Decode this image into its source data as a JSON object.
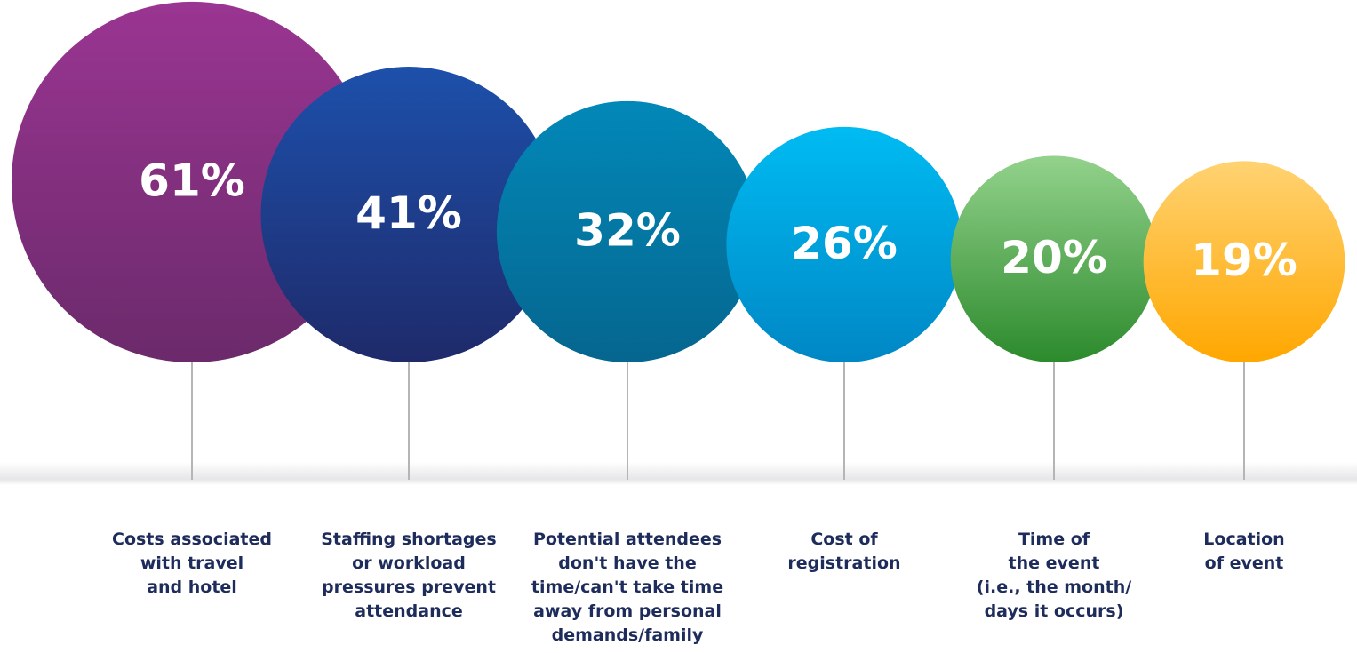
{
  "chart_data": {
    "type": "bubble",
    "categories": [
      "Costs associated\nwith travel\nand hotel",
      "Staffing shortages\nor workload\npressures prevent\nattendance",
      "Potential attendees\ndon't have the\ntime/can't take time\naway from personal\ndemands/family",
      "Cost of\nregistration",
      "Time of\nthe event\n(i.e., the month/\ndays it occurs)",
      "Location\nof event"
    ],
    "values": [
      61,
      41,
      32,
      26,
      20,
      19
    ],
    "value_labels": [
      "61%",
      "41%",
      "32%",
      "26%",
      "20%",
      "19%"
    ],
    "colors": [
      [
        "#9a3592",
        "#6b2a6b"
      ],
      [
        "#1d50ab",
        "#1e2a6a"
      ],
      [
        "#0288b8",
        "#05668f"
      ],
      [
        "#00bbf2",
        "#0087c5"
      ],
      [
        "#93d28c",
        "#2c8a2c"
      ],
      [
        "#ffd272",
        "#ffa700"
      ]
    ]
  }
}
